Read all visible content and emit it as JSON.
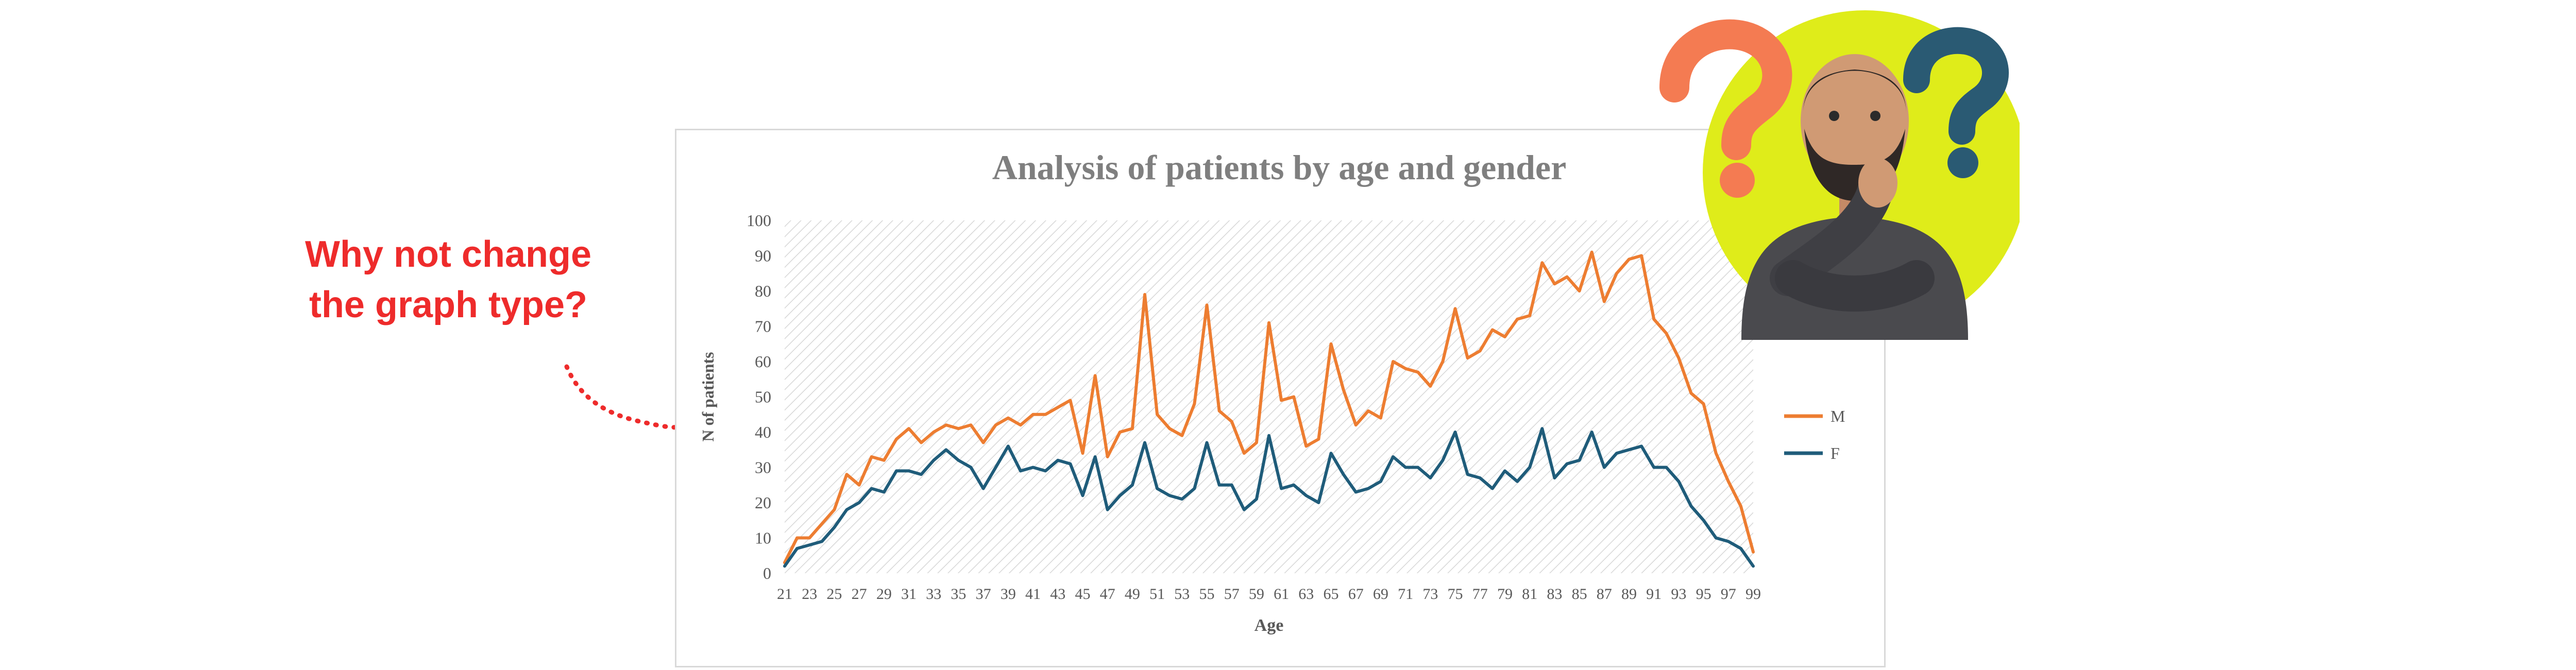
{
  "callout": {
    "line1": "Why not change",
    "line2": "the graph type?",
    "color": "#ee2b2b"
  },
  "illustration": {
    "icon": "thinking-man-with-question-marks",
    "circle_color": "#dfec1a",
    "left_question_color": "#f47b52",
    "right_question_color": "#2a5a73"
  },
  "chart_data": {
    "type": "line",
    "title": "Analysis of patients by age and gender",
    "xlabel": "Age",
    "ylabel": "N of patients",
    "ylim": [
      0,
      100
    ],
    "yticks": [
      0,
      10,
      20,
      30,
      40,
      50,
      60,
      70,
      80,
      90,
      100
    ],
    "xlim": [
      21,
      99
    ],
    "xticks": [
      21,
      23,
      25,
      27,
      29,
      31,
      33,
      35,
      37,
      39,
      41,
      43,
      45,
      47,
      49,
      51,
      53,
      55,
      57,
      59,
      61,
      63,
      65,
      67,
      69,
      71,
      73,
      75,
      77,
      79,
      81,
      83,
      85,
      87,
      89,
      91,
      93,
      95,
      97,
      99
    ],
    "grid": false,
    "plot_background": "diagonal-hatch",
    "legend_position": "right",
    "x": [
      21,
      22,
      23,
      24,
      25,
      26,
      27,
      28,
      29,
      30,
      31,
      32,
      33,
      34,
      35,
      36,
      37,
      38,
      39,
      40,
      41,
      42,
      43,
      44,
      45,
      46,
      47,
      48,
      49,
      50,
      51,
      52,
      53,
      54,
      55,
      56,
      57,
      58,
      59,
      60,
      61,
      62,
      63,
      64,
      65,
      66,
      67,
      68,
      69,
      70,
      71,
      72,
      73,
      74,
      75,
      76,
      77,
      78,
      79,
      80,
      81,
      82,
      83,
      84,
      85,
      86,
      87,
      88,
      89,
      90,
      91,
      92,
      93,
      94,
      95,
      96,
      97,
      98,
      99
    ],
    "series": [
      {
        "name": "M",
        "color": "#ed7d31",
        "values": [
          3,
          10,
          10,
          14,
          18,
          28,
          25,
          33,
          32,
          38,
          41,
          37,
          40,
          42,
          41,
          42,
          37,
          42,
          44,
          42,
          45,
          45,
          47,
          49,
          34,
          56,
          33,
          40,
          41,
          79,
          45,
          41,
          39,
          48,
          76,
          46,
          43,
          34,
          37,
          71,
          49,
          50,
          36,
          38,
          65,
          52,
          42,
          46,
          44,
          60,
          58,
          57,
          53,
          60,
          75,
          61,
          63,
          69,
          67,
          72,
          73,
          88,
          82,
          84,
          80,
          91,
          77,
          85,
          89,
          90,
          72,
          68,
          61,
          51,
          48,
          34,
          26,
          19,
          6
        ]
      },
      {
        "name": "F",
        "color": "#1f5c7a",
        "values": [
          2,
          7,
          8,
          9,
          13,
          18,
          20,
          24,
          23,
          29,
          29,
          28,
          32,
          35,
          32,
          30,
          24,
          30,
          36,
          29,
          30,
          29,
          32,
          31,
          22,
          33,
          18,
          22,
          25,
          37,
          24,
          22,
          21,
          24,
          37,
          25,
          25,
          18,
          21,
          39,
          24,
          25,
          22,
          20,
          34,
          28,
          23,
          24,
          26,
          33,
          30,
          30,
          27,
          32,
          40,
          28,
          27,
          24,
          29,
          26,
          30,
          41,
          27,
          31,
          32,
          40,
          30,
          34,
          35,
          36,
          30,
          30,
          26,
          19,
          15,
          10,
          9,
          7,
          2
        ]
      }
    ]
  }
}
